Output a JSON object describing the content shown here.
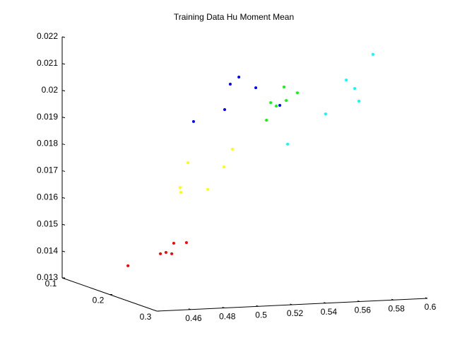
{
  "chart_data": {
    "type": "scatter3d",
    "title": "Training Data Hu Moment Mean",
    "xlim": [
      0.44,
      0.6
    ],
    "xticks": [
      0.46,
      0.48,
      0.5,
      0.52,
      0.54,
      0.56,
      0.58,
      0.6
    ],
    "ylim": [
      0.1,
      0.3
    ],
    "yticks": [
      0.1,
      0.2,
      0.3
    ],
    "zlim": [
      0.013,
      0.022
    ],
    "zticks": [
      0.013,
      0.014,
      0.015,
      0.016,
      0.017,
      0.018,
      0.019,
      0.02,
      0.021,
      0.022
    ],
    "series": [
      {
        "color": "#ff0000",
        "x": [
          0.4509,
          0.4701,
          0.4734,
          0.4768,
          0.478,
          0.4855
        ],
        "y": [
          0.2,
          0.2,
          0.2,
          0.2,
          0.2,
          0.2
        ],
        "z": [
          0.01404,
          0.01443,
          0.01447,
          0.01441,
          0.0148,
          0.0148
        ]
      },
      {
        "color": "#ffff00",
        "x": [
          0.4818,
          0.4822,
          0.4864,
          0.4981,
          0.5077,
          0.5127
        ],
        "y": [
          0.2,
          0.2,
          0.2,
          0.2,
          0.2,
          0.2
        ],
        "z": [
          0.01687,
          0.01669,
          0.01778,
          0.01675,
          0.01756,
          0.01821
        ]
      },
      {
        "color": "#0000ff",
        "x": [
          0.4897,
          0.5081,
          0.5114,
          0.5165,
          0.5265,
          0.5407
        ],
        "y": [
          0.2,
          0.2,
          0.2,
          0.2,
          0.2,
          0.2
        ],
        "z": [
          0.01931,
          0.0197,
          0.02064,
          0.02089,
          0.02046,
          0.01976
        ]
      },
      {
        "color": "#00ff00",
        "x": [
          0.5328,
          0.5353,
          0.5386,
          0.5432,
          0.5445,
          0.5511
        ],
        "y": [
          0.2,
          0.2,
          0.2,
          0.2,
          0.2,
          0.2
        ],
        "z": [
          0.01923,
          0.01988,
          0.01974,
          0.02044,
          0.01993,
          0.0202
        ]
      },
      {
        "color": "#00ffff",
        "x": [
          0.5453,
          0.5678,
          0.58,
          0.585,
          0.5875,
          0.5958
        ],
        "y": [
          0.2,
          0.2,
          0.2,
          0.2,
          0.2,
          0.2
        ],
        "z": [
          0.0183,
          0.01936,
          0.02059,
          0.02026,
          0.01978,
          0.0215
        ]
      }
    ]
  }
}
